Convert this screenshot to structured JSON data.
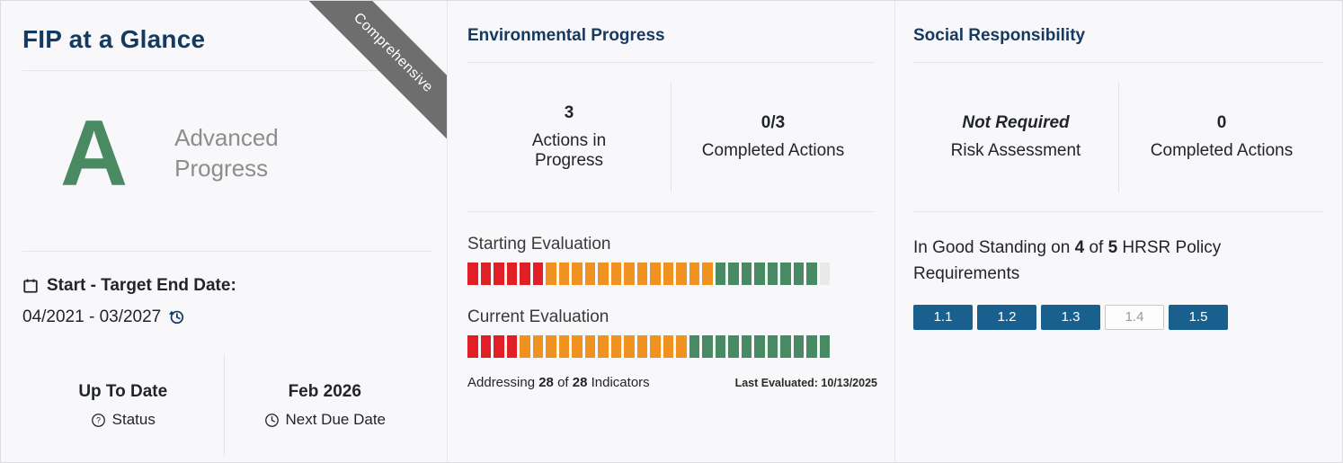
{
  "glance": {
    "title": "FIP at a Glance",
    "ribbon_label": "Comprehensive",
    "grade": "A",
    "grade_label": "Advanced Progress",
    "dates": {
      "label": "Start - Target End Date:",
      "value": "04/2021 - 03/2027"
    },
    "status": {
      "value": "Up To Date",
      "label": "Status"
    },
    "next_due": {
      "value": "Feb 2026",
      "label": "Next Due Date"
    }
  },
  "environmental": {
    "title": "Environmental Progress",
    "stats": [
      {
        "value": "3",
        "label": "Actions in Progress"
      },
      {
        "value": "0/3",
        "label": "Completed Actions"
      }
    ],
    "evaluations": [
      {
        "label": "Starting Evaluation",
        "segments": [
          {
            "color": "red",
            "count": 6
          },
          {
            "color": "orange",
            "count": 13
          },
          {
            "color": "green",
            "count": 8
          },
          {
            "color": "empty",
            "count": 1
          }
        ]
      },
      {
        "label": "Current Evaluation",
        "segments": [
          {
            "color": "red",
            "count": 4
          },
          {
            "color": "orange",
            "count": 13
          },
          {
            "color": "green",
            "count": 11
          }
        ]
      }
    ],
    "addressing": {
      "pre": "Addressing ",
      "count": "28",
      "mid": " of ",
      "total": "28",
      "post": " Indicators"
    },
    "last_evaluated": "Last Evaluated: 10/13/2025"
  },
  "social": {
    "title": "Social Responsibility",
    "stats": [
      {
        "value": "Not Required",
        "label": "Risk Assessment"
      },
      {
        "value": "0",
        "label": "Completed Actions"
      }
    ],
    "standing": {
      "pre": "In Good Standing on ",
      "good": "4",
      "mid": " of ",
      "total": "5",
      "post": " HRSR Policy Requirements"
    },
    "badges": [
      {
        "label": "1.1",
        "active": true
      },
      {
        "label": "1.2",
        "active": true
      },
      {
        "label": "1.3",
        "active": true
      },
      {
        "label": "1.4",
        "active": false
      },
      {
        "label": "1.5",
        "active": true
      }
    ]
  },
  "colors": {
    "heading_navy": "#16395f",
    "grade_green": "#4a8a63",
    "ribbon_gray": "#6e6e6e",
    "segment_red": "#e01f26",
    "segment_orange": "#f0921f",
    "segment_green": "#478a63",
    "segment_empty": "#e9e9e9",
    "badge_blue": "#1a608f"
  }
}
